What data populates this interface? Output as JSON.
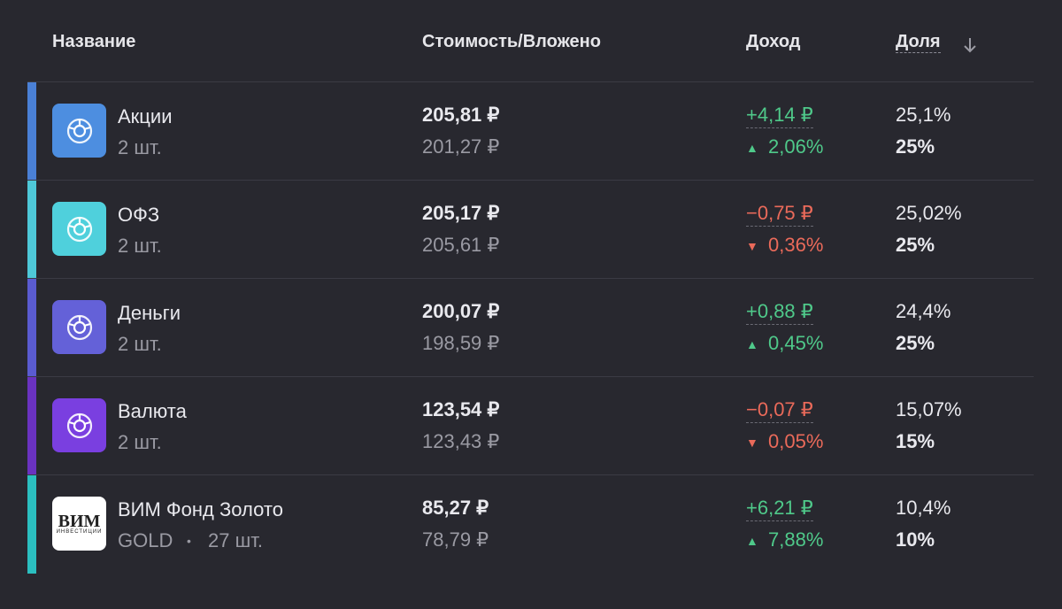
{
  "header": {
    "name": "Название",
    "value": "Стоимость/Вложено",
    "income": "Доход",
    "share": "Доля"
  },
  "rows": [
    {
      "name": "Акции",
      "sub": "2 шт.",
      "value": "205,81 ₽",
      "invested": "201,27 ₽",
      "income": "+4,14 ₽",
      "percent": "2,06%",
      "trend": "up",
      "share": "25,1%",
      "target": "25%",
      "color": "#4a80d6",
      "icon_color": "#4d8ee0"
    },
    {
      "name": "ОФЗ",
      "sub": "2 шт.",
      "value": "205,17 ₽",
      "invested": "205,61 ₽",
      "income": "−0,75 ₽",
      "percent": "0,36%",
      "trend": "down",
      "share": "25,02%",
      "target": "25%",
      "color": "#4ec8d8",
      "icon_color": "#4fd0dc"
    },
    {
      "name": "Деньги",
      "sub": "2 шт.",
      "value": "200,07 ₽",
      "invested": "198,59 ₽",
      "income": "+0,88 ₽",
      "percent": "0,45%",
      "trend": "up",
      "share": "24,4%",
      "target": "25%",
      "color": "#5a5bd0",
      "icon_color": "#6461d8"
    },
    {
      "name": "Валюта",
      "sub": "2 шт.",
      "value": "123,54 ₽",
      "invested": "123,43 ₽",
      "income": "−0,07 ₽",
      "percent": "0,05%",
      "trend": "down",
      "share": "15,07%",
      "target": "15%",
      "color": "#6a32c0",
      "icon_color": "#7a3fe0"
    },
    {
      "name": "ВИМ Фонд Золото",
      "ticker": "GOLD",
      "sub": "27 шт.",
      "value": "85,27 ₽",
      "invested": "78,79 ₽",
      "income": "+6,21 ₽",
      "percent": "7,88%",
      "trend": "up",
      "share": "10,4%",
      "target": "10%",
      "color": "#2bbfc0",
      "logo_text": "ВИМ",
      "logo_sub": "ИНВЕСТИЦИИ"
    }
  ]
}
